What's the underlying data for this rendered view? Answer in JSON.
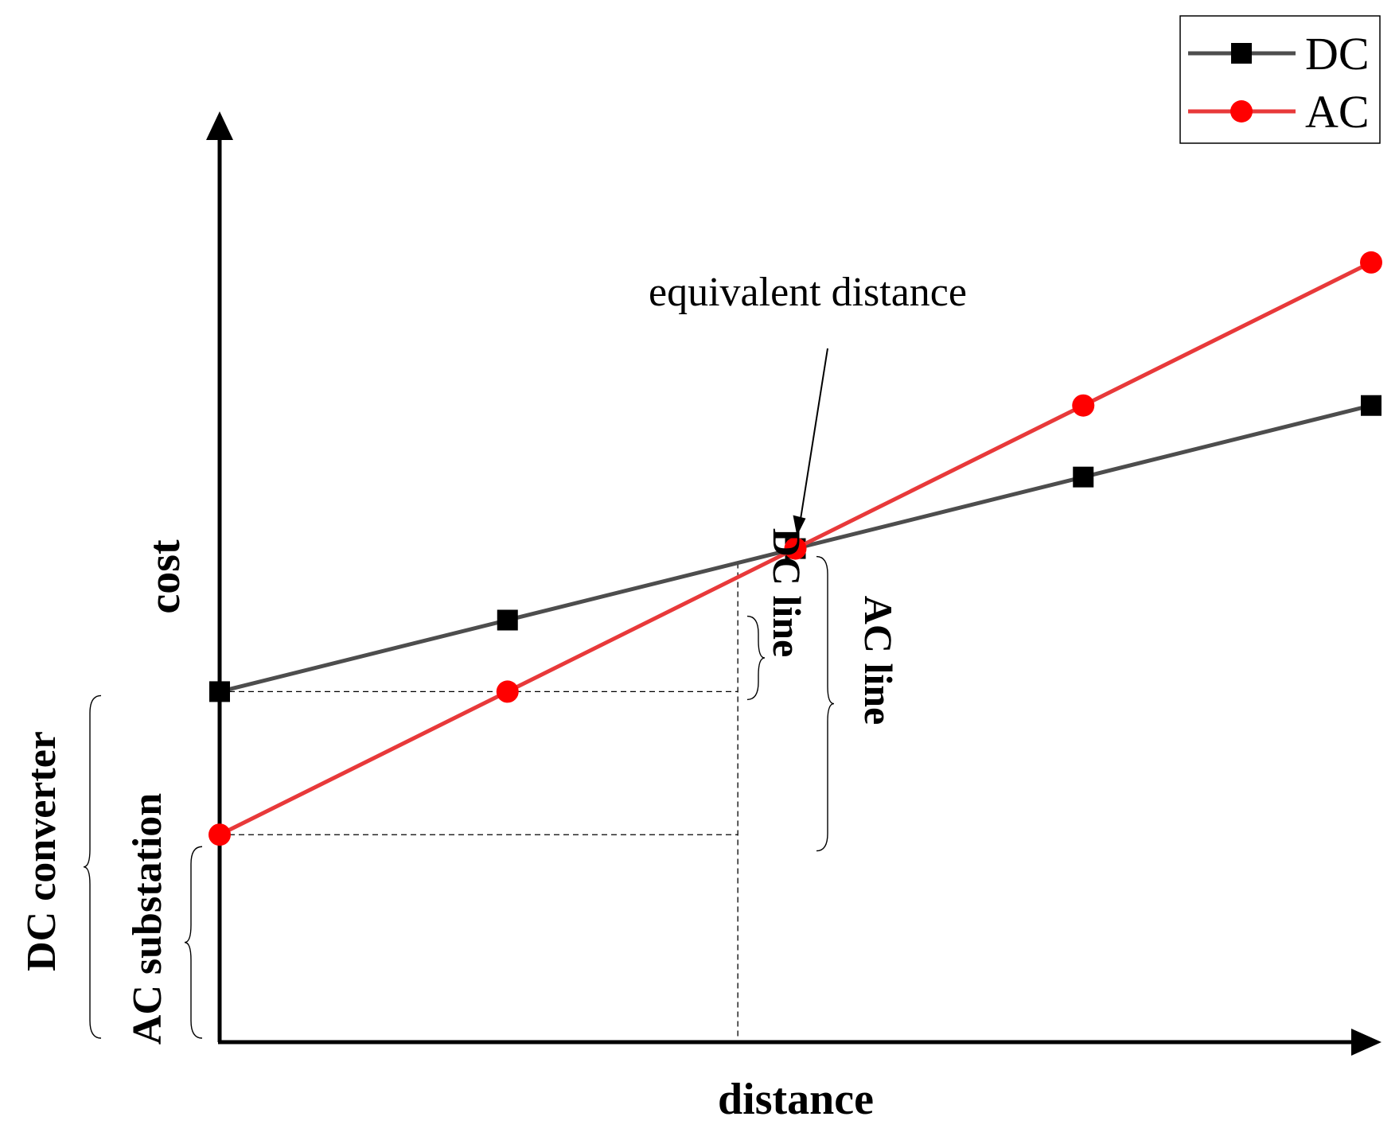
{
  "chart_data": {
    "type": "line",
    "title": "",
    "xlabel": "distance",
    "ylabel": "cost",
    "x": [
      0,
      1,
      2,
      3,
      4
    ],
    "xlim": [
      0,
      4
    ],
    "ylim": [
      0,
      12.2
    ],
    "grid": false,
    "legend_position": "top-right",
    "axis_ticks": "none",
    "series": [
      {
        "name": "DC",
        "color": "#4d4d4d",
        "marker": "square",
        "marker_color": "#000000",
        "values": [
          4.9,
          5.9,
          6.9,
          7.9,
          8.9
        ]
      },
      {
        "name": "AC",
        "color": "#e8393a",
        "marker": "circle",
        "marker_color": "#ff0000",
        "values": [
          2.9,
          4.9,
          6.9,
          8.9,
          10.9
        ]
      }
    ],
    "annotations": {
      "equivalent_distance": "equivalent distance",
      "dc_line": "DC line",
      "ac_line": "AC line",
      "dc_converter": "DC converter",
      "ac_substation": "AC substation"
    }
  }
}
